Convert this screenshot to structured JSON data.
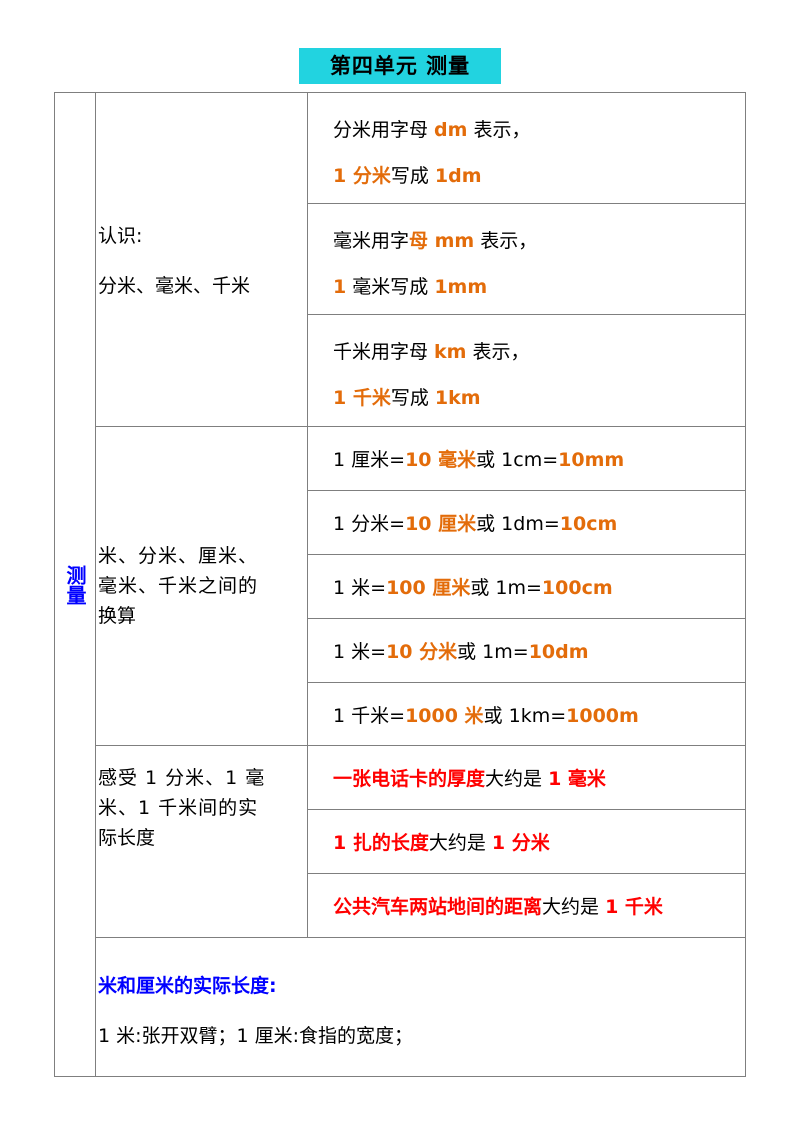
{
  "title": "第四单元 测量",
  "side_label": "测量",
  "sections": {
    "recognition": {
      "label_line1": "认识:",
      "label_line2": "分米、毫米、千米",
      "dm": {
        "l1_a": "分米用字母 ",
        "l1_b": "dm",
        "l1_c": " 表示，",
        "l2_a": "1 分米",
        "l2_b": "写成 ",
        "l2_c": "1dm"
      },
      "mm": {
        "l1_a": "毫米用字",
        "l1_b": "母 mm",
        "l1_c": " 表示，",
        "l2_a": "1",
        "l2_b": " 毫米写成 ",
        "l2_c": "1mm"
      },
      "km": {
        "l1_a": "千米用字母 ",
        "l1_b": "km",
        "l1_c": " 表示，",
        "l2_a": "1 千米",
        "l2_b": "写成 ",
        "l2_c": "1km"
      }
    },
    "conversion": {
      "label_line1": "米、分米、厘米、",
      "label_line2": "毫米、千米之间的",
      "label_line3": "换算",
      "rows": [
        {
          "a": "1 厘米=",
          "b": "10 毫米",
          "c": "或 1cm=",
          "d": "10mm"
        },
        {
          "a": "1 分米=",
          "b": "10 厘米",
          "c": "或 1dm=",
          "d": "10cm"
        },
        {
          "a": "1 米=",
          "b": "100 厘米",
          "c": "或  1m=",
          "d": "100cm"
        },
        {
          "a": "1 米=",
          "b": "10 分米",
          "c": "或 1m=",
          "d": "10dm"
        },
        {
          "a": "1 千米=",
          "b": "1000 米",
          "c": "或 1km=",
          "d": "1000m"
        }
      ]
    },
    "feel": {
      "label_line1": "感受 1 分米、1 毫",
      "label_line2": "米、1  千米间的实",
      "label_line3": "际长度",
      "rows": [
        {
          "a": "一张电话卡的厚度",
          "b": "大约是 ",
          "c": "1 毫米"
        },
        {
          "a": "1 扎的长度",
          "b": "大约是 ",
          "c": "1 分米"
        },
        {
          "a": "公共汽车两站地间的距离",
          "b": "大约是 ",
          "c": "1 千米"
        }
      ]
    },
    "actual": {
      "heading": "米和厘米的实际长度:",
      "text": "1 米:张开双臂；1 厘米:食指的宽度；"
    }
  },
  "colors": {
    "title_bg": "#22d3e0",
    "orange": "#e36c0a",
    "red": "#ff0000",
    "blue": "#0000ff",
    "border": "#7f7f7f"
  }
}
